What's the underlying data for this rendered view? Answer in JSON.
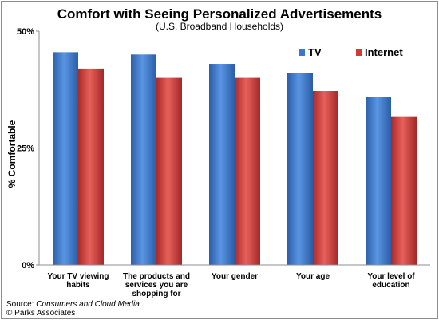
{
  "chart_data": {
    "type": "bar",
    "title": "Comfort with Seeing Personalized Advertisements",
    "subtitle": "(U.S. Broadband Households)",
    "ylabel": "% Comfortable",
    "xlabel": "",
    "ylim": [
      0,
      50
    ],
    "yticks": [
      0,
      25,
      50
    ],
    "ytick_labels": [
      "0%",
      "25%",
      "50%"
    ],
    "grid": false,
    "legend_position": "top-right",
    "categories": [
      [
        "Your TV viewing",
        "habits"
      ],
      [
        "The products and",
        "services you are",
        "shopping for"
      ],
      [
        "Your gender"
      ],
      [
        "Your age"
      ],
      [
        "Your level of",
        "education"
      ]
    ],
    "series": [
      {
        "name": "TV",
        "color": "#3a78cf",
        "values": [
          45.5,
          45,
          43,
          41,
          36
        ]
      },
      {
        "name": "Internet",
        "color": "#d23a37",
        "values": [
          42,
          40,
          40,
          37.2,
          31.8
        ]
      }
    ]
  },
  "footer": {
    "source_label": "Source: ",
    "source_title": "Consumers and Cloud Media",
    "copyright": "© Parks Associates"
  }
}
